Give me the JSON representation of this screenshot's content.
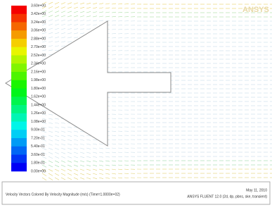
{
  "legend": {
    "labels": [
      "3.60e+00",
      "3.42e+00",
      "3.24e+00",
      "3.06e+00",
      "2.88e+00",
      "2.70e+00",
      "2.52e+00",
      "2.34e+00",
      "2.16e+00",
      "1.98e+00",
      "1.80e+00",
      "1.62e+00",
      "1.44e+00",
      "1.26e+00",
      "1.08e+00",
      "9.00e-01",
      "7.20e-01",
      "5.40e-01",
      "3.60e-01",
      "1.80e-01",
      "0.00e+00"
    ]
  },
  "logo": "ANSYS",
  "footer": {
    "caption": "Velocity Vectors Colored By Velocity Magnitude (m/s)   (Time=1.0000e+02)",
    "date": "May 11, 2010",
    "software": "ANSYS FLUENT 12.0 (2d, dp, pbns, ske, transient)"
  }
}
